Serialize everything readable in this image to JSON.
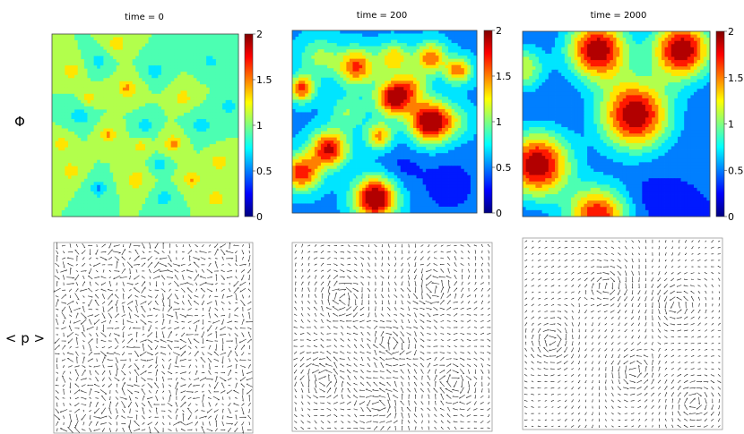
{
  "row_labels": {
    "top": "Φ",
    "bottom": "< p >"
  },
  "colorbar": {
    "ticks": [
      0,
      0.5,
      1,
      1.5,
      2
    ],
    "tick_labels": [
      "0",
      "0.5",
      "1",
      "1.5",
      "2"
    ],
    "colormap": [
      "#00007f",
      "#0000ff",
      "#007fff",
      "#00ffff",
      "#7fff7f",
      "#ffff00",
      "#ff7f00",
      "#ff0000",
      "#7f0000"
    ]
  },
  "chart_data": [
    {
      "type": "heatmap",
      "title": "time = 0",
      "zlim": [
        0,
        2
      ],
      "field": {
        "base": 1.0,
        "bumps": [
          {
            "x": 0.1,
            "y": 0.2,
            "amp": 0.4,
            "r": 0.03
          },
          {
            "x": 0.25,
            "y": 0.15,
            "amp": -0.35,
            "r": 0.03
          },
          {
            "x": 0.4,
            "y": 0.3,
            "amp": 0.45,
            "r": 0.035
          },
          {
            "x": 0.55,
            "y": 0.2,
            "amp": -0.4,
            "r": 0.03
          },
          {
            "x": 0.7,
            "y": 0.35,
            "amp": 0.4,
            "r": 0.03
          },
          {
            "x": 0.85,
            "y": 0.15,
            "amp": -0.3,
            "r": 0.03
          },
          {
            "x": 0.15,
            "y": 0.45,
            "amp": -0.4,
            "r": 0.035
          },
          {
            "x": 0.3,
            "y": 0.55,
            "amp": 0.45,
            "r": 0.03
          },
          {
            "x": 0.5,
            "y": 0.5,
            "amp": -0.35,
            "r": 0.03
          },
          {
            "x": 0.65,
            "y": 0.6,
            "amp": 0.5,
            "r": 0.03
          },
          {
            "x": 0.8,
            "y": 0.5,
            "amp": -0.4,
            "r": 0.035
          },
          {
            "x": 0.9,
            "y": 0.7,
            "amp": 0.4,
            "r": 0.03
          },
          {
            "x": 0.1,
            "y": 0.75,
            "amp": 0.4,
            "r": 0.03
          },
          {
            "x": 0.25,
            "y": 0.85,
            "amp": -0.45,
            "r": 0.03
          },
          {
            "x": 0.45,
            "y": 0.8,
            "amp": 0.4,
            "r": 0.035
          },
          {
            "x": 0.6,
            "y": 0.9,
            "amp": -0.35,
            "r": 0.03
          },
          {
            "x": 0.75,
            "y": 0.8,
            "amp": 0.45,
            "r": 0.03
          },
          {
            "x": 0.35,
            "y": 0.05,
            "amp": 0.4,
            "r": 0.03
          },
          {
            "x": 0.95,
            "y": 0.4,
            "amp": -0.35,
            "r": 0.03
          },
          {
            "x": 0.05,
            "y": 0.6,
            "amp": 0.35,
            "r": 0.03
          },
          {
            "x": 0.2,
            "y": 0.35,
            "amp": 0.35,
            "r": 0.025
          },
          {
            "x": 0.58,
            "y": 0.72,
            "amp": -0.4,
            "r": 0.025
          },
          {
            "x": 0.88,
            "y": 0.9,
            "amp": 0.4,
            "r": 0.03
          },
          {
            "x": 0.48,
            "y": 0.62,
            "amp": 0.35,
            "r": 0.025
          }
        ]
      }
    },
    {
      "type": "heatmap",
      "title": "time = 200",
      "zlim": [
        0,
        2
      ],
      "field": {
        "base": 0.55,
        "bumps": [
          {
            "x": 0.35,
            "y": 0.2,
            "amp": 1.1,
            "r": 0.07
          },
          {
            "x": 0.55,
            "y": 0.15,
            "amp": 0.8,
            "r": 0.06
          },
          {
            "x": 0.75,
            "y": 0.15,
            "amp": 1.0,
            "r": 0.06
          },
          {
            "x": 0.9,
            "y": 0.22,
            "amp": 1.0,
            "r": 0.05
          },
          {
            "x": 0.05,
            "y": 0.32,
            "amp": 1.1,
            "r": 0.05
          },
          {
            "x": 0.55,
            "y": 0.37,
            "amp": 1.4,
            "r": 0.07
          },
          {
            "x": 0.75,
            "y": 0.5,
            "amp": 1.6,
            "r": 0.08
          },
          {
            "x": 0.47,
            "y": 0.58,
            "amp": 0.9,
            "r": 0.05
          },
          {
            "x": 0.2,
            "y": 0.65,
            "amp": 1.3,
            "r": 0.07
          },
          {
            "x": 0.05,
            "y": 0.78,
            "amp": 1.2,
            "r": 0.07
          },
          {
            "x": 0.45,
            "y": 0.92,
            "amp": 1.6,
            "r": 0.08
          },
          {
            "x": 0.65,
            "y": 0.3,
            "amp": 0.6,
            "r": 0.06
          },
          {
            "x": 0.15,
            "y": 0.15,
            "amp": 0.5,
            "r": 0.08
          },
          {
            "x": 0.3,
            "y": 0.45,
            "amp": 0.45,
            "r": 0.07
          },
          {
            "x": 0.85,
            "y": 0.85,
            "amp": -0.3,
            "r": 0.1
          },
          {
            "x": 0.6,
            "y": 0.75,
            "amp": -0.2,
            "r": 0.08
          },
          {
            "x": 0.9,
            "y": 0.5,
            "amp": 0.3,
            "r": 0.06
          }
        ]
      }
    },
    {
      "type": "heatmap",
      "title": "time = 2000",
      "zlim": [
        0,
        2
      ],
      "field": {
        "base": 0.4,
        "bumps": [
          {
            "x": 0.4,
            "y": 0.1,
            "amp": 1.6,
            "r": 0.11
          },
          {
            "x": 0.85,
            "y": 0.1,
            "amp": 1.6,
            "r": 0.11
          },
          {
            "x": 0.6,
            "y": 0.45,
            "amp": 1.6,
            "r": 0.13
          },
          {
            "x": 0.08,
            "y": 0.72,
            "amp": 1.6,
            "r": 0.12
          },
          {
            "x": 0.4,
            "y": 1.0,
            "amp": 1.4,
            "r": 0.11
          },
          {
            "x": 0.0,
            "y": 0.2,
            "amp": 0.8,
            "r": 0.08
          },
          {
            "x": 0.7,
            "y": 0.9,
            "amp": -0.15,
            "r": 0.07
          }
        ]
      }
    },
    {
      "type": "vector-field",
      "grid": 30,
      "seed": 17,
      "mode": "random",
      "vortices": []
    },
    {
      "type": "vector-field",
      "grid": 30,
      "seed": 53,
      "mode": "structured",
      "vortices": [
        {
          "x": 0.25,
          "y": 0.3,
          "s": 1
        },
        {
          "x": 0.7,
          "y": 0.25,
          "s": -1
        },
        {
          "x": 0.5,
          "y": 0.55,
          "s": 1
        },
        {
          "x": 0.15,
          "y": 0.7,
          "s": -1
        },
        {
          "x": 0.8,
          "y": 0.75,
          "s": 1
        },
        {
          "x": 0.45,
          "y": 0.85,
          "s": -1
        }
      ]
    },
    {
      "type": "vector-field",
      "grid": 30,
      "seed": 91,
      "mode": "ordered",
      "vortices": [
        {
          "x": 0.45,
          "y": 0.25,
          "s": 1
        },
        {
          "x": 0.75,
          "y": 0.35,
          "s": -1
        },
        {
          "x": 0.15,
          "y": 0.55,
          "s": 1
        },
        {
          "x": 0.55,
          "y": 0.7,
          "s": -1
        },
        {
          "x": 0.85,
          "y": 0.85,
          "s": 1
        }
      ]
    }
  ]
}
